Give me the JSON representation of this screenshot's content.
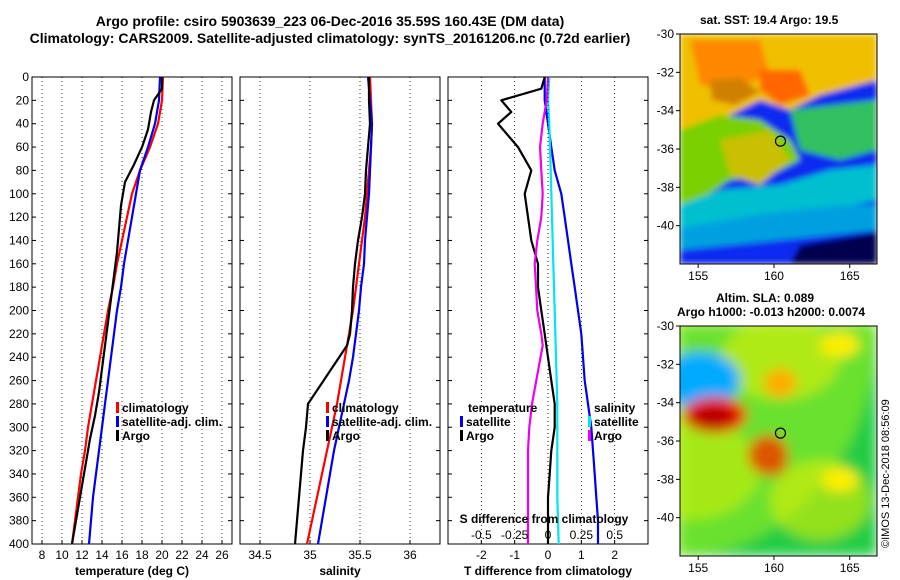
{
  "header": {
    "line1": "Argo profile: csiro 5903639_223 06-Dec-2016 35.59S 160.43E (DM data)",
    "line2": "Climatology: CARS2009. Satellite-adjusted climatology: synTS_20161206.nc (0.72d earlier)"
  },
  "colors": {
    "climatology": "#ff0000",
    "satellite": "#0000ee",
    "argo": "#000000",
    "salinity_diff": "#ee00ee",
    "satellite_salinity_diff": "#00e5ee"
  },
  "chart_data": [
    {
      "type": "line",
      "name": "temperature",
      "xlabel": "temperature (deg C)",
      "ylabel": "",
      "xlim": [
        7,
        27
      ],
      "ylim": [
        400,
        0
      ],
      "x_ticks": [
        8,
        10,
        12,
        14,
        16,
        18,
        20,
        22,
        24,
        26
      ],
      "y_ticks": [
        0,
        20,
        40,
        60,
        80,
        100,
        120,
        140,
        160,
        180,
        200,
        220,
        240,
        260,
        280,
        300,
        320,
        340,
        360,
        380,
        400
      ],
      "grid": "vertical dotted",
      "legend": [
        "climatology",
        "satellite-adj. clim.",
        "Argo"
      ],
      "series": [
        {
          "name": "climatology",
          "color": "#ff0000",
          "points": [
            [
              20.1,
              0
            ],
            [
              20.0,
              20
            ],
            [
              19.6,
              40
            ],
            [
              18.8,
              60
            ],
            [
              17.8,
              80
            ],
            [
              17.0,
              100
            ],
            [
              16.5,
              120
            ],
            [
              16.0,
              140
            ],
            [
              15.5,
              160
            ],
            [
              15.1,
              180
            ],
            [
              14.6,
              200
            ],
            [
              14.2,
              220
            ],
            [
              13.8,
              240
            ],
            [
              13.4,
              260
            ],
            [
              13.0,
              280
            ],
            [
              12.6,
              300
            ],
            [
              12.3,
              320
            ],
            [
              11.9,
              340
            ],
            [
              11.6,
              360
            ],
            [
              11.3,
              380
            ],
            [
              11.0,
              400
            ]
          ]
        },
        {
          "name": "satellite-adj. clim.",
          "color": "#0000ee",
          "points": [
            [
              19.8,
              0
            ],
            [
              19.7,
              20
            ],
            [
              19.3,
              40
            ],
            [
              18.6,
              60
            ],
            [
              17.8,
              80
            ],
            [
              17.4,
              100
            ],
            [
              17.0,
              120
            ],
            [
              16.6,
              140
            ],
            [
              16.2,
              160
            ],
            [
              15.9,
              180
            ],
            [
              15.5,
              200
            ],
            [
              15.2,
              220
            ],
            [
              14.9,
              240
            ],
            [
              14.6,
              260
            ],
            [
              14.3,
              280
            ],
            [
              14.0,
              300
            ],
            [
              13.7,
              320
            ],
            [
              13.4,
              340
            ],
            [
              13.1,
              360
            ],
            [
              12.9,
              380
            ],
            [
              12.7,
              400
            ]
          ]
        },
        {
          "name": "Argo",
          "color": "#000000",
          "points": [
            [
              20.0,
              0
            ],
            [
              20.0,
              10
            ],
            [
              19.2,
              20
            ],
            [
              18.9,
              30
            ],
            [
              18.6,
              45
            ],
            [
              18.0,
              60
            ],
            [
              17.2,
              75
            ],
            [
              16.3,
              90
            ],
            [
              15.9,
              110
            ],
            [
              15.7,
              130
            ],
            [
              15.5,
              150
            ],
            [
              15.2,
              170
            ],
            [
              14.9,
              190
            ],
            [
              14.6,
              210
            ],
            [
              14.3,
              230
            ],
            [
              14.0,
              250
            ],
            [
              13.7,
              270
            ],
            [
              13.3,
              290
            ],
            [
              12.8,
              310
            ],
            [
              12.4,
              330
            ],
            [
              12.0,
              350
            ],
            [
              11.6,
              370
            ],
            [
              11.2,
              390
            ],
            [
              11.0,
              400
            ]
          ]
        }
      ]
    },
    {
      "type": "line",
      "name": "salinity",
      "xlabel": "salinity",
      "xlim": [
        34.3,
        36.3
      ],
      "ylim": [
        400,
        0
      ],
      "x_ticks": [
        34.5,
        35,
        35.5,
        36
      ],
      "grid": "vertical dotted",
      "legend": [
        "climatology",
        "satellite-adj. clim.",
        "Argo"
      ],
      "series": [
        {
          "name": "climatology",
          "color": "#ff0000",
          "points": [
            [
              35.6,
              0
            ],
            [
              35.61,
              20
            ],
            [
              35.62,
              40
            ],
            [
              35.61,
              60
            ],
            [
              35.59,
              80
            ],
            [
              35.57,
              100
            ],
            [
              35.55,
              120
            ],
            [
              35.52,
              140
            ],
            [
              35.49,
              160
            ],
            [
              35.46,
              180
            ],
            [
              35.43,
              200
            ],
            [
              35.39,
              220
            ],
            [
              35.35,
              240
            ],
            [
              35.31,
              260
            ],
            [
              35.27,
              280
            ],
            [
              35.22,
              300
            ],
            [
              35.17,
              320
            ],
            [
              35.12,
              340
            ],
            [
              35.07,
              360
            ],
            [
              35.02,
              380
            ],
            [
              34.97,
              400
            ]
          ]
        },
        {
          "name": "satellite-adj. clim.",
          "color": "#0000ee",
          "points": [
            [
              35.58,
              0
            ],
            [
              35.6,
              20
            ],
            [
              35.62,
              40
            ],
            [
              35.61,
              60
            ],
            [
              35.6,
              80
            ],
            [
              35.59,
              100
            ],
            [
              35.57,
              120
            ],
            [
              35.55,
              140
            ],
            [
              35.54,
              160
            ],
            [
              35.51,
              180
            ],
            [
              35.49,
              200
            ],
            [
              35.46,
              220
            ],
            [
              35.43,
              240
            ],
            [
              35.39,
              260
            ],
            [
              35.34,
              280
            ],
            [
              35.29,
              300
            ],
            [
              35.24,
              320
            ],
            [
              35.2,
              340
            ],
            [
              35.16,
              360
            ],
            [
              35.12,
              380
            ],
            [
              35.08,
              400
            ]
          ]
        },
        {
          "name": "Argo",
          "color": "#000000",
          "points": [
            [
              35.59,
              0
            ],
            [
              35.59,
              20
            ],
            [
              35.6,
              40
            ],
            [
              35.58,
              60
            ],
            [
              35.56,
              80
            ],
            [
              35.55,
              100
            ],
            [
              35.52,
              120
            ],
            [
              35.48,
              140
            ],
            [
              35.45,
              160
            ],
            [
              35.43,
              180
            ],
            [
              35.42,
              200
            ],
            [
              35.4,
              220
            ],
            [
              35.37,
              230
            ],
            [
              34.98,
              280
            ],
            [
              34.96,
              300
            ],
            [
              34.93,
              320
            ],
            [
              34.91,
              340
            ],
            [
              34.89,
              360
            ],
            [
              34.87,
              380
            ],
            [
              34.85,
              400
            ]
          ]
        }
      ]
    },
    {
      "type": "line",
      "name": "difference from climatology",
      "xlabel": "T difference from climatology",
      "top_axis_label": "S difference from climatology",
      "xlim": [
        -3,
        3
      ],
      "ylim": [
        400,
        0
      ],
      "x_ticks": [
        -2,
        -1,
        0,
        1,
        2
      ],
      "top_x_ticks": [
        "-0.5",
        "-0.25",
        "0",
        "0.25",
        "0.5"
      ],
      "grid": "vertical dotted",
      "legend_temperature": [
        "temperature",
        "satellite",
        "Argo"
      ],
      "legend_salinity": [
        "salinity",
        "satellite",
        "Argo"
      ],
      "series": [
        {
          "name": "T satellite",
          "color": "#0000ee",
          "points": [
            [
              -0.1,
              0
            ],
            [
              -0.1,
              20
            ],
            [
              0.0,
              40
            ],
            [
              0.1,
              60
            ],
            [
              0.2,
              80
            ],
            [
              0.4,
              100
            ],
            [
              0.5,
              120
            ],
            [
              0.6,
              140
            ],
            [
              0.7,
              160
            ],
            [
              0.8,
              180
            ],
            [
              0.9,
              200
            ],
            [
              1.0,
              220
            ],
            [
              1.05,
              240
            ],
            [
              1.1,
              260
            ],
            [
              1.2,
              280
            ],
            [
              1.3,
              300
            ],
            [
              1.35,
              320
            ],
            [
              1.4,
              340
            ],
            [
              1.45,
              360
            ],
            [
              1.5,
              380
            ],
            [
              1.5,
              400
            ]
          ]
        },
        {
          "name": "T Argo",
          "color": "#000000",
          "points": [
            [
              -0.1,
              0
            ],
            [
              -0.2,
              10
            ],
            [
              -1.4,
              20
            ],
            [
              -1.1,
              30
            ],
            [
              -1.5,
              40
            ],
            [
              -0.9,
              60
            ],
            [
              -0.5,
              80
            ],
            [
              -0.7,
              100
            ],
            [
              -0.6,
              120
            ],
            [
              -0.5,
              140
            ],
            [
              -0.3,
              160
            ],
            [
              -0.3,
              180
            ],
            [
              -0.2,
              200
            ],
            [
              -0.1,
              220
            ],
            [
              -0.05,
              230
            ],
            [
              0.1,
              260
            ],
            [
              0.2,
              280
            ],
            [
              0.2,
              300
            ],
            [
              0.1,
              320
            ],
            [
              0.05,
              340
            ],
            [
              0.0,
              360
            ],
            [
              0.0,
              380
            ],
            [
              0.0,
              400
            ]
          ]
        },
        {
          "name": "S satellite",
          "color": "#00e5ee",
          "points": [
            [
              0.01,
              0
            ],
            [
              0.0,
              20
            ],
            [
              0.01,
              40
            ],
            [
              0.02,
              80
            ],
            [
              0.03,
              120
            ],
            [
              0.04,
              160
            ],
            [
              0.05,
              200
            ],
            [
              0.06,
              240
            ],
            [
              0.07,
              280
            ],
            [
              0.07,
              320
            ],
            [
              0.07,
              360
            ],
            [
              0.08,
              400
            ]
          ]
        },
        {
          "name": "S Argo",
          "color": "#ee00ee",
          "points": [
            [
              0.0,
              0
            ],
            [
              -0.01,
              20
            ],
            [
              -0.04,
              40
            ],
            [
              -0.06,
              60
            ],
            [
              -0.05,
              80
            ],
            [
              -0.04,
              100
            ],
            [
              -0.05,
              120
            ],
            [
              -0.08,
              140
            ],
            [
              -0.1,
              160
            ],
            [
              -0.09,
              180
            ],
            [
              -0.08,
              200
            ],
            [
              -0.05,
              220
            ],
            [
              -0.04,
              230
            ],
            [
              -0.12,
              280
            ],
            [
              -0.14,
              300
            ],
            [
              -0.15,
              320
            ],
            [
              -0.15,
              340
            ],
            [
              -0.15,
              360
            ],
            [
              -0.15,
              380
            ],
            [
              -0.15,
              400
            ]
          ]
        }
      ]
    }
  ],
  "maps": {
    "sst": {
      "title": "sat. SST: 19.4 Argo: 19.5",
      "y_ticks": [
        "-30",
        "-32",
        "-34",
        "-36",
        "-38",
        "-40"
      ],
      "x_ticks": [
        "155",
        "160",
        "165"
      ],
      "marker": {
        "lon": 160.43,
        "lat": -35.59
      }
    },
    "sla": {
      "title1": "Altim. SLA: 0.089",
      "title2": "Argo h1000: -0.013 h2000: 0.0074",
      "y_ticks": [
        "-30",
        "-32",
        "-34",
        "-36",
        "-38",
        "-40"
      ],
      "x_ticks": [
        "155",
        "160",
        "165"
      ],
      "marker": {
        "lon": 160.43,
        "lat": -35.59
      }
    }
  },
  "credit": "©IMOS 13-Dec-2018 08:56:09"
}
